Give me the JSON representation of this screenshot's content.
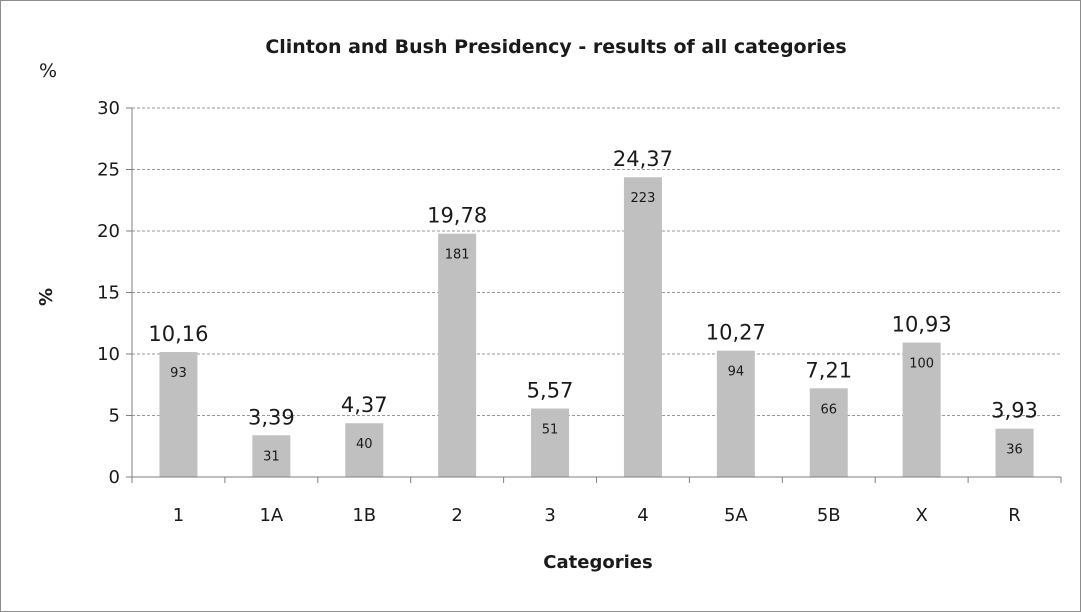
{
  "chart_data": {
    "type": "bar",
    "title": "Clinton and Bush Presidency - results of all categories",
    "corner_label": "%",
    "xlabel": "Categories",
    "ylabel": "%",
    "categories": [
      "1",
      "1A",
      "1B",
      "2",
      "3",
      "4",
      "5A",
      "5B",
      "X",
      "R"
    ],
    "values": [
      10.16,
      3.39,
      4.37,
      19.78,
      5.57,
      24.37,
      10.27,
      7.21,
      10.93,
      3.93
    ],
    "value_labels": [
      "10,16",
      "3,39",
      "4,37",
      "19,78",
      "5,57",
      "24,37",
      "10,27",
      "7,21",
      "10,93",
      "3,93"
    ],
    "counts": [
      "93",
      "31",
      "40",
      "181",
      "51",
      "223",
      "94",
      "66",
      "100",
      "36"
    ],
    "ylim": [
      0,
      30
    ],
    "yticks": [
      0,
      5,
      10,
      15,
      20,
      25,
      30
    ],
    "grid": true,
    "bar_color": "#c0c0c0",
    "grid_color": "#9a9a9a"
  }
}
